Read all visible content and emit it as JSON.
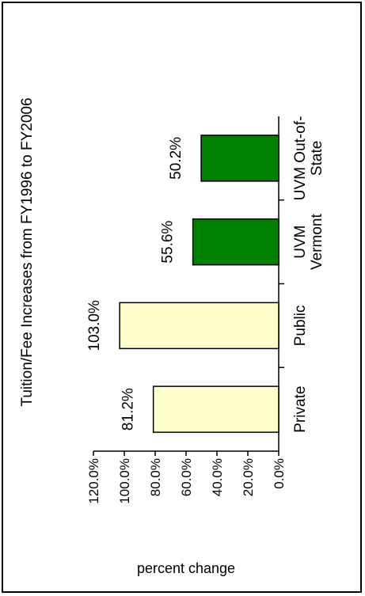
{
  "chart_data": {
    "type": "bar",
    "orientation": "rotated-90-ccw",
    "title": "Tuition/Fee Increases from FY1996 to FY2006",
    "xlabel": "",
    "ylabel": "percent change",
    "categories": [
      [
        "Private"
      ],
      [
        "Public"
      ],
      [
        "UVM",
        "Vermont"
      ],
      [
        "UVM Out-of-",
        "State"
      ]
    ],
    "values": [
      81.2,
      103.0,
      55.6,
      50.2
    ],
    "data_labels": [
      "81.2%",
      "103.0%",
      "55.6%",
      "50.2%"
    ],
    "bar_colors": [
      "#ffffcc",
      "#ffffcc",
      "#008000",
      "#008000"
    ],
    "ylim": [
      0,
      120
    ],
    "yticks": [
      0,
      20,
      40,
      60,
      80,
      100,
      120
    ],
    "ytick_labels": [
      "0.0%",
      "20.0%",
      "40.0%",
      "60.0%",
      "80.0%",
      "100.0%",
      "120.0%"
    ],
    "grid": false,
    "legend": "none"
  }
}
